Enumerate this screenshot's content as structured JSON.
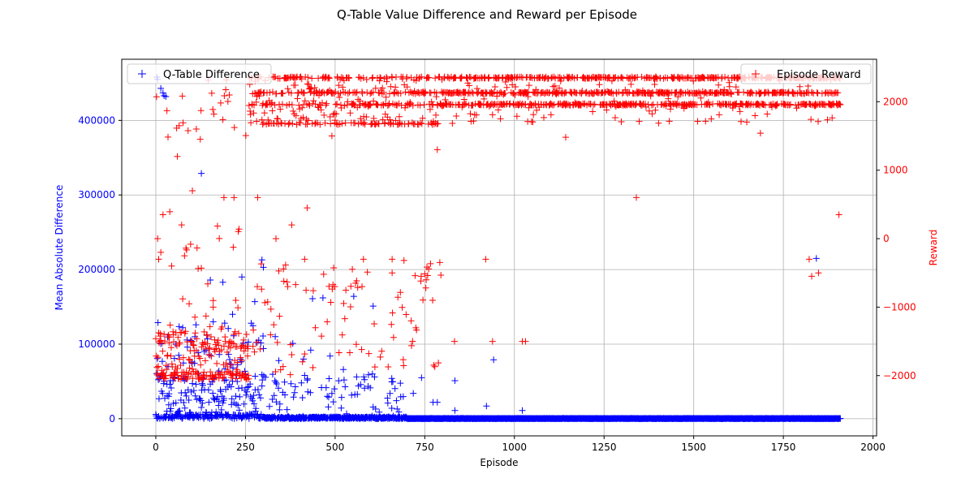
{
  "chart_data": {
    "type": "scatter",
    "title": "Q-Table Value Difference and Reward per Episode",
    "xlabel": "Episode",
    "ylabel_left": "Mean Absolute Difference",
    "ylabel_right": "Reward",
    "xlim": [
      -95,
      2010
    ],
    "ylim_left": [
      -23000,
      482000
    ],
    "ylim_right": [
      -2880,
      2620
    ],
    "xticks": [
      0,
      250,
      500,
      750,
      1000,
      1250,
      1500,
      1750,
      2000
    ],
    "xtick_labels": [
      "0",
      "250",
      "500",
      "750",
      "1000",
      "1250",
      "1500",
      "1750",
      "2000"
    ],
    "yticks_left": [
      0,
      100000,
      200000,
      300000,
      400000
    ],
    "ytick_labels_left": [
      "0",
      "100000",
      "200000",
      "300000",
      "400000"
    ],
    "yticks_right": [
      -2000,
      -1000,
      0,
      1000,
      2000
    ],
    "ytick_labels_right": [
      "−2000",
      "−1000",
      "0",
      "1000",
      "2000"
    ],
    "grid": true,
    "marker": "+",
    "n_episodes": 1910,
    "series": [
      {
        "name": "Q-Table Difference",
        "axis": "left",
        "color": "#0000ff",
        "legend_position": "upper-left",
        "outlier_points": [
          [
            3,
            458000
          ],
          [
            5,
            455000
          ],
          [
            14,
            443000
          ],
          [
            20,
            437000
          ],
          [
            23,
            433000
          ],
          [
            28,
            432000
          ],
          [
            127,
            329000
          ],
          [
            296,
            213000
          ],
          [
            300,
            203000
          ],
          [
            240,
            190000
          ],
          [
            152,
            186000
          ],
          [
            187,
            183000
          ],
          [
            552,
            164000
          ],
          [
            466,
            162000
          ],
          [
            437,
            161000
          ],
          [
            606,
            151000
          ],
          [
            276,
            157000
          ],
          [
            214,
            140000
          ],
          [
            75,
            122000
          ],
          [
            112,
            126000
          ],
          [
            160,
            130000
          ],
          [
            202,
            121000
          ],
          [
            333,
            110000
          ],
          [
            382,
            101000
          ],
          [
            56,
            100000
          ],
          [
            88,
            96000
          ],
          [
            140,
            92000
          ],
          [
            300,
            94000
          ],
          [
            432,
            92000
          ],
          [
            486,
            84000
          ],
          [
            942,
            79000
          ],
          [
            343,
            78000
          ],
          [
            412,
            80000
          ],
          [
            64,
            85000
          ],
          [
            236,
            80000
          ],
          [
            101,
            74000
          ],
          [
            176,
            64000
          ],
          [
            523,
            66000
          ],
          [
            610,
            56000
          ],
          [
            560,
            56000
          ],
          [
            658,
            54000
          ],
          [
            741,
            55000
          ],
          [
            834,
            51000
          ],
          [
            406,
            48000
          ],
          [
            296,
            44000
          ],
          [
            498,
            40000
          ],
          [
            565,
            44000
          ],
          [
            582,
            41000
          ],
          [
            718,
            34000
          ],
          [
            478,
            30000
          ],
          [
            360,
            32000
          ],
          [
            325,
            26000
          ],
          [
            647,
            21000
          ],
          [
            773,
            22000
          ],
          [
            785,
            22000
          ],
          [
            922,
            17000
          ],
          [
            1022,
            11000
          ],
          [
            834,
            11000
          ],
          [
            658,
            14000
          ],
          [
            678,
            9000
          ],
          [
            1842,
            215000
          ],
          [
            41,
            51000
          ],
          [
            36,
            30000
          ],
          [
            82,
            35000
          ],
          [
            119,
            60000
          ],
          [
            131,
            45000
          ],
          [
            196,
            52000
          ],
          [
            254,
            36000
          ],
          [
            277,
            57000
          ],
          [
            31,
            10000
          ],
          [
            18,
            58000
          ]
        ]
      },
      {
        "name": "Episode Reward",
        "axis": "right",
        "color": "#ff0000",
        "legend_position": "upper-right",
        "bands": [
          2350,
          2130,
          1960,
          1680
        ],
        "outlier_points": [
          [
            5,
            0
          ],
          [
            8,
            -300
          ],
          [
            14,
            -200
          ],
          [
            20,
            350
          ],
          [
            44,
            -400
          ],
          [
            60,
            1200
          ],
          [
            65,
            1650
          ],
          [
            72,
            200
          ],
          [
            102,
            700
          ],
          [
            113,
            1600
          ],
          [
            126,
            1870
          ],
          [
            162,
            1820
          ],
          [
            190,
            600
          ],
          [
            218,
            600
          ],
          [
            284,
            600
          ],
          [
            335,
            0
          ],
          [
            379,
            200
          ],
          [
            415,
            -300
          ],
          [
            422,
            450
          ],
          [
            491,
            1500
          ],
          [
            579,
            -300
          ],
          [
            659,
            -300
          ],
          [
            740,
            -550
          ],
          [
            785,
            1300
          ],
          [
            920,
            -300
          ],
          [
            1031,
            -1500
          ],
          [
            1143,
            1480
          ],
          [
            1340,
            600
          ],
          [
            1686,
            1540
          ],
          [
            1822,
            -300
          ],
          [
            1829,
            -550
          ],
          [
            1848,
            -500
          ],
          [
            1905,
            350
          ],
          [
            1022,
            -1500
          ],
          [
            939,
            -1500
          ],
          [
            833,
            -1500
          ],
          [
            712,
            -1200
          ],
          [
            659,
            -500
          ],
          [
            575,
            -700
          ],
          [
            499,
            -700
          ],
          [
            445,
            -1300
          ],
          [
            368,
            -700
          ],
          [
            283,
            -700
          ],
          [
            223,
            -900
          ],
          [
            160,
            -1000
          ]
        ]
      }
    ]
  }
}
